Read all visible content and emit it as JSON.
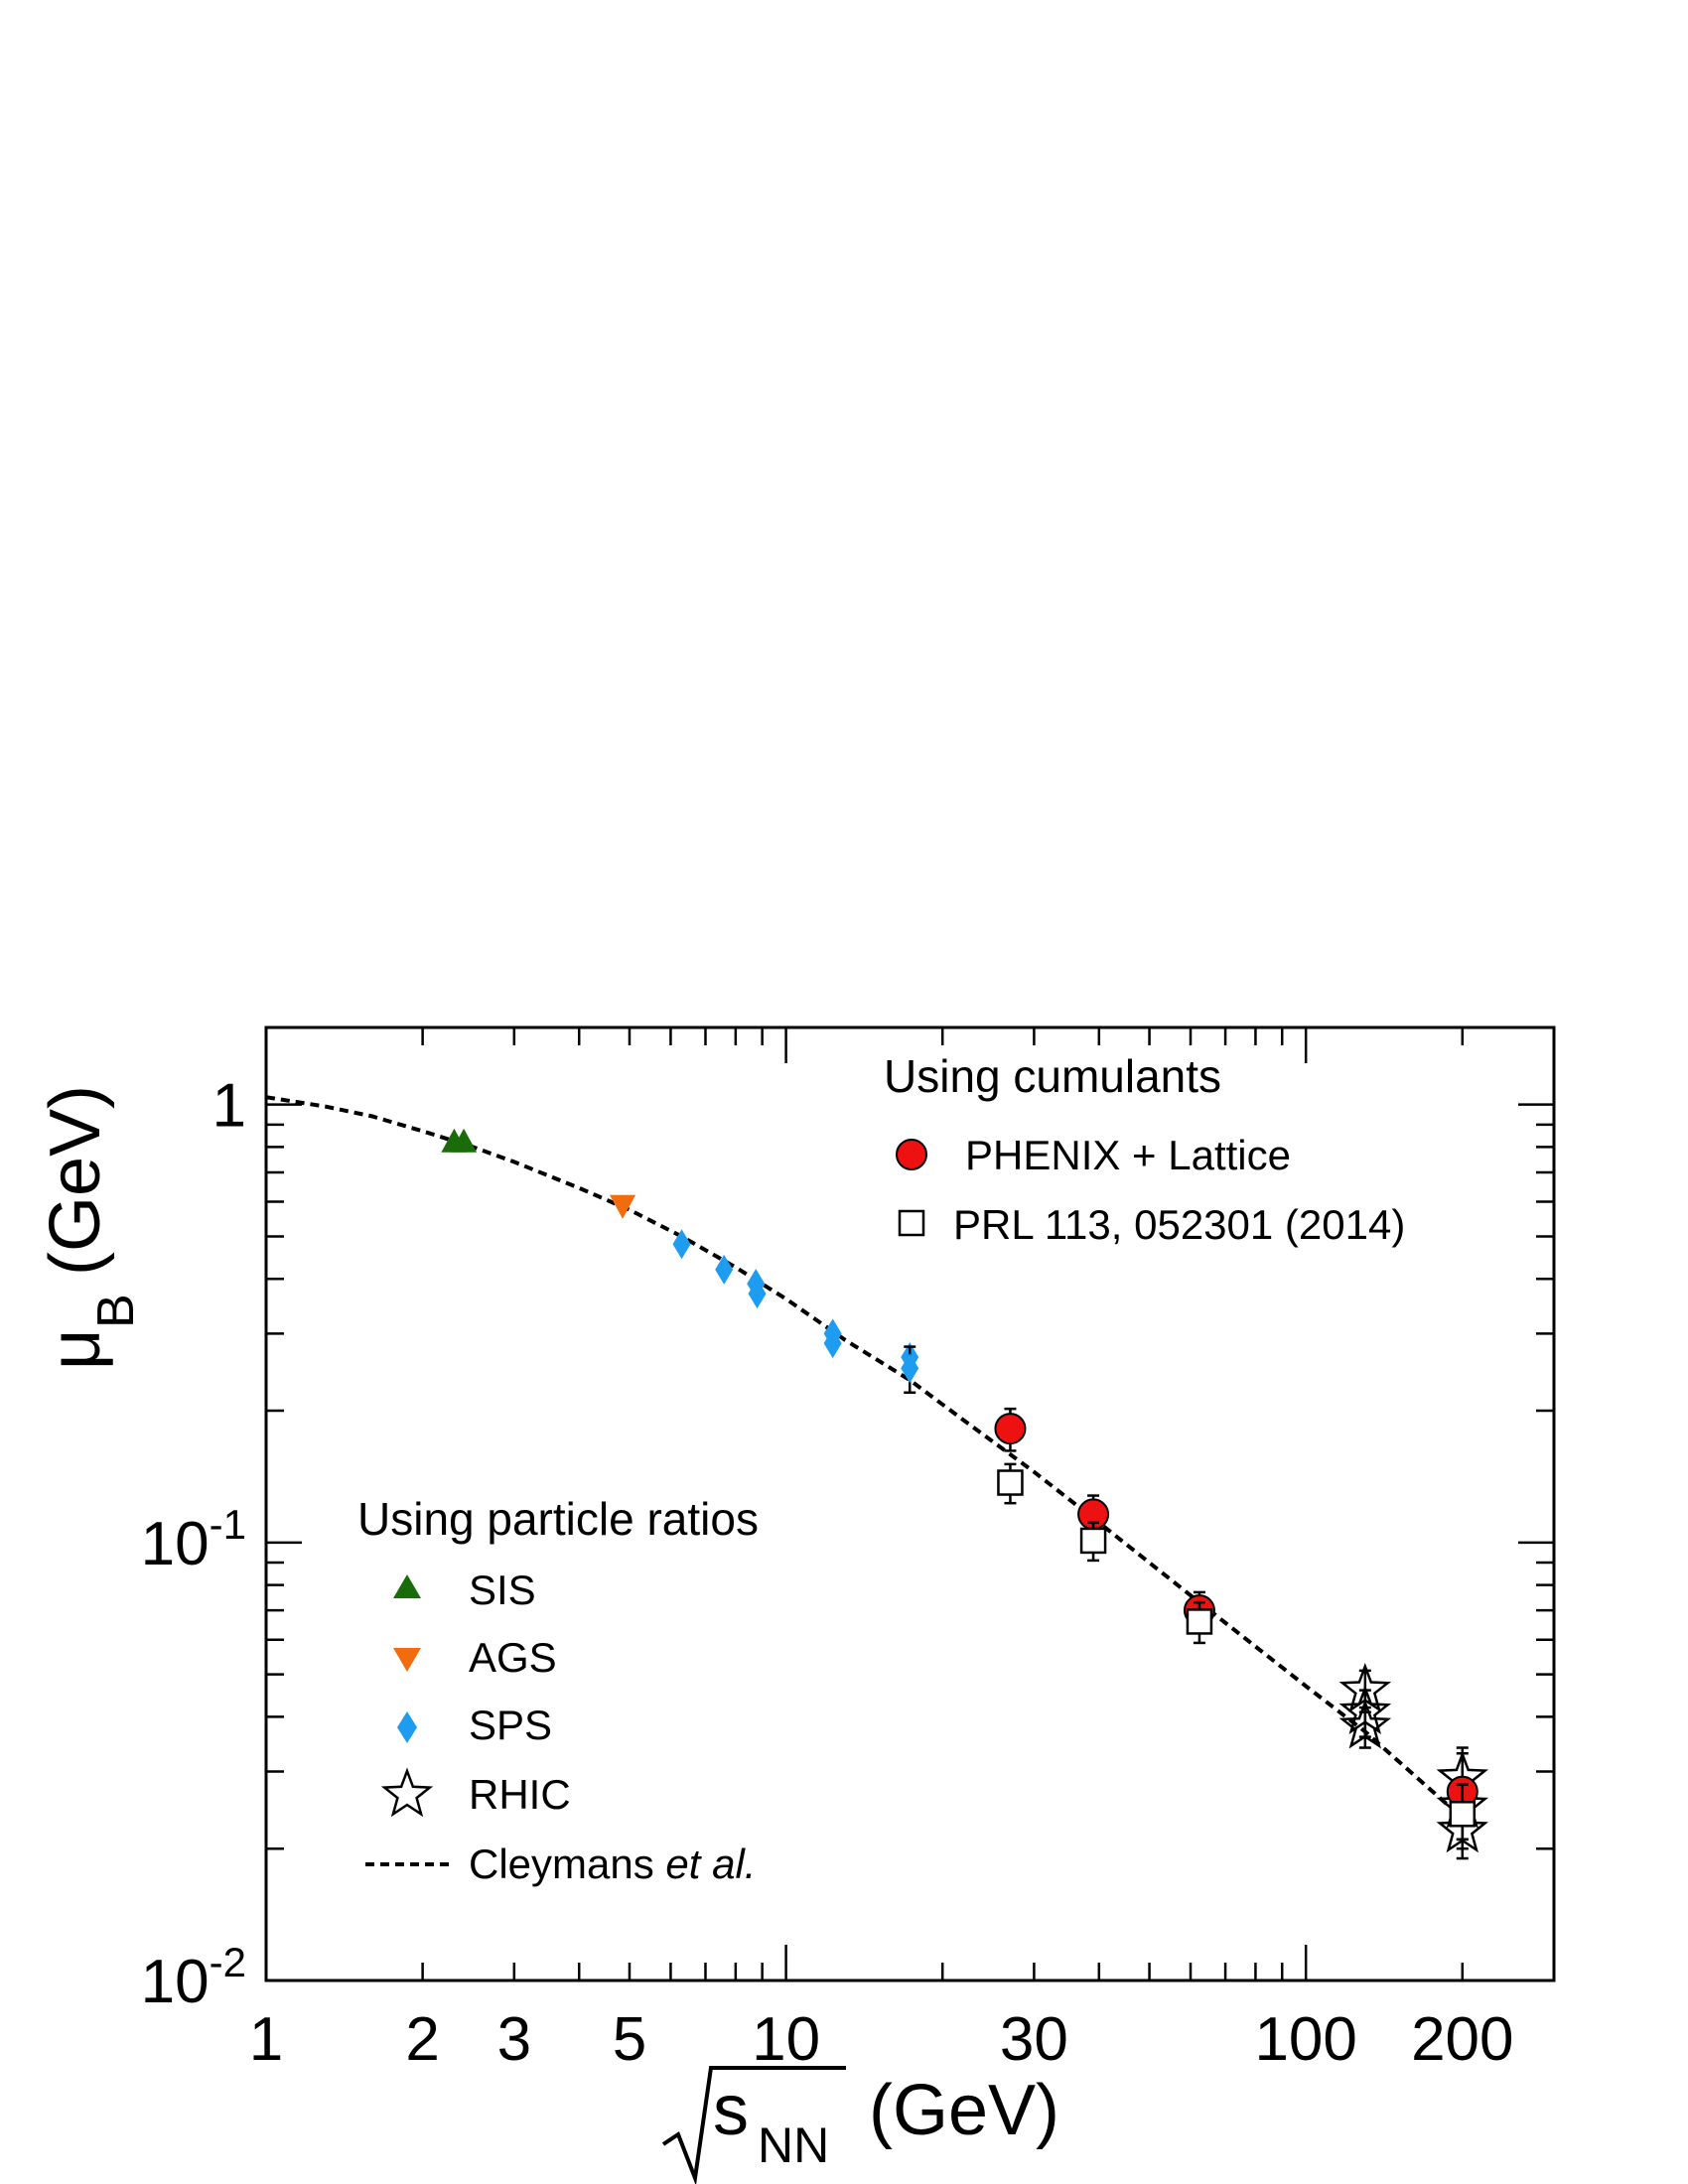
{
  "chart_data": {
    "type": "scatter",
    "title": "",
    "xlabel": "√s_NN (GeV)",
    "xlabel_parts": {
      "sub": "NN",
      "main": "s",
      "unit": "(GeV)"
    },
    "ylabel": "μ_B (GeV)",
    "ylabel_parts": {
      "mu": "μ",
      "sub": "B",
      "unit": "(GeV)"
    },
    "x_scale": "log",
    "y_scale": "log",
    "xlim": [
      1,
      300
    ],
    "ylim": [
      0.01,
      1.5
    ],
    "grid": false,
    "x_tick_labels": [
      "1",
      "2",
      "3",
      "5",
      "10",
      "30",
      "100",
      "200"
    ],
    "x_ticks": [
      1,
      2,
      3,
      5,
      10,
      30,
      100,
      200
    ],
    "y_tick_labels": [
      {
        "value": 1,
        "base": "1",
        "exp": ""
      },
      {
        "value": 0.1,
        "base": "10",
        "exp": "-1"
      },
      {
        "value": 0.01,
        "base": "10",
        "exp": "-2"
      }
    ],
    "legend_groups": [
      {
        "heading": "Using cumulants",
        "placement": "top-right"
      },
      {
        "heading": "Using particle ratios",
        "placement": "bottom-left"
      }
    ],
    "series": [
      {
        "name": "SIS",
        "group": 1,
        "marker": "triangle-up",
        "color": "#1a6b0a",
        "points": [
          {
            "x": 2.3,
            "y": 0.82
          },
          {
            "x": 2.4,
            "y": 0.82
          }
        ]
      },
      {
        "name": "AGS",
        "group": 1,
        "marker": "triangle-down",
        "color": "#f26c0d",
        "points": [
          {
            "x": 4.85,
            "y": 0.59
          }
        ]
      },
      {
        "name": "SPS",
        "group": 1,
        "marker": "diamond",
        "color": "#1e9cf0",
        "points": [
          {
            "x": 6.3,
            "y": 0.48
          },
          {
            "x": 7.6,
            "y": 0.42
          },
          {
            "x": 8.8,
            "y": 0.37
          },
          {
            "x": 8.75,
            "y": 0.39
          },
          {
            "x": 12.3,
            "y": 0.3
          },
          {
            "x": 12.3,
            "y": 0.285
          },
          {
            "x": 17.3,
            "y": 0.265
          },
          {
            "x": 17.3,
            "y": 0.25,
            "err": 0.03
          }
        ]
      },
      {
        "name": "RHIC",
        "group": 1,
        "marker": "star-open",
        "color": "#000000",
        "points": [
          {
            "x": 130,
            "y": 0.046,
            "err": 0.005
          },
          {
            "x": 130,
            "y": 0.041,
            "err": 0.005
          },
          {
            "x": 130,
            "y": 0.038,
            "err": 0.004
          },
          {
            "x": 200,
            "y": 0.029,
            "err": 0.005
          },
          {
            "x": 200,
            "y": 0.025,
            "err": 0.004
          },
          {
            "x": 200,
            "y": 0.022,
            "err": 0.003
          }
        ]
      },
      {
        "name": "Cleymans et al.",
        "group": 1,
        "marker": "dashed-line",
        "color": "#000000",
        "legend_plain": "Cleymans ",
        "legend_italic": "et al.",
        "points": [
          {
            "x": 1,
            "y": 1.04
          },
          {
            "x": 1.3,
            "y": 0.99
          },
          {
            "x": 1.6,
            "y": 0.94
          },
          {
            "x": 2,
            "y": 0.87
          },
          {
            "x": 2.5,
            "y": 0.8
          },
          {
            "x": 3,
            "y": 0.74
          },
          {
            "x": 4,
            "y": 0.645
          },
          {
            "x": 5,
            "y": 0.575
          },
          {
            "x": 6.3,
            "y": 0.5
          },
          {
            "x": 8,
            "y": 0.425
          },
          {
            "x": 10,
            "y": 0.36
          },
          {
            "x": 13,
            "y": 0.29
          },
          {
            "x": 17.3,
            "y": 0.235
          },
          {
            "x": 22,
            "y": 0.19
          },
          {
            "x": 30,
            "y": 0.145
          },
          {
            "x": 40,
            "y": 0.111
          },
          {
            "x": 62.4,
            "y": 0.073
          },
          {
            "x": 100,
            "y": 0.047
          },
          {
            "x": 130,
            "y": 0.037
          },
          {
            "x": 200,
            "y": 0.0235
          }
        ]
      },
      {
        "name": "PHENIX + Lattice",
        "group": 0,
        "marker": "circle-filled",
        "color": "#ee1111",
        "points": [
          {
            "x": 27,
            "y": 0.182,
            "err": 0.02
          },
          {
            "x": 39,
            "y": 0.116,
            "err": 0.012
          },
          {
            "x": 62.4,
            "y": 0.07,
            "err": 0.007
          },
          {
            "x": 200,
            "y": 0.027,
            "err": 0.006
          }
        ]
      },
      {
        "name": "PRL 113, 052301 (2014)",
        "group": 0,
        "marker": "square-open",
        "color": "#000000",
        "points": [
          {
            "x": 27,
            "y": 0.137,
            "err": 0.014
          },
          {
            "x": 39,
            "y": 0.101,
            "err": 0.01
          },
          {
            "x": 62.4,
            "y": 0.066,
            "err": 0.007
          },
          {
            "x": 200,
            "y": 0.024,
            "err": 0.004
          }
        ]
      }
    ]
  }
}
